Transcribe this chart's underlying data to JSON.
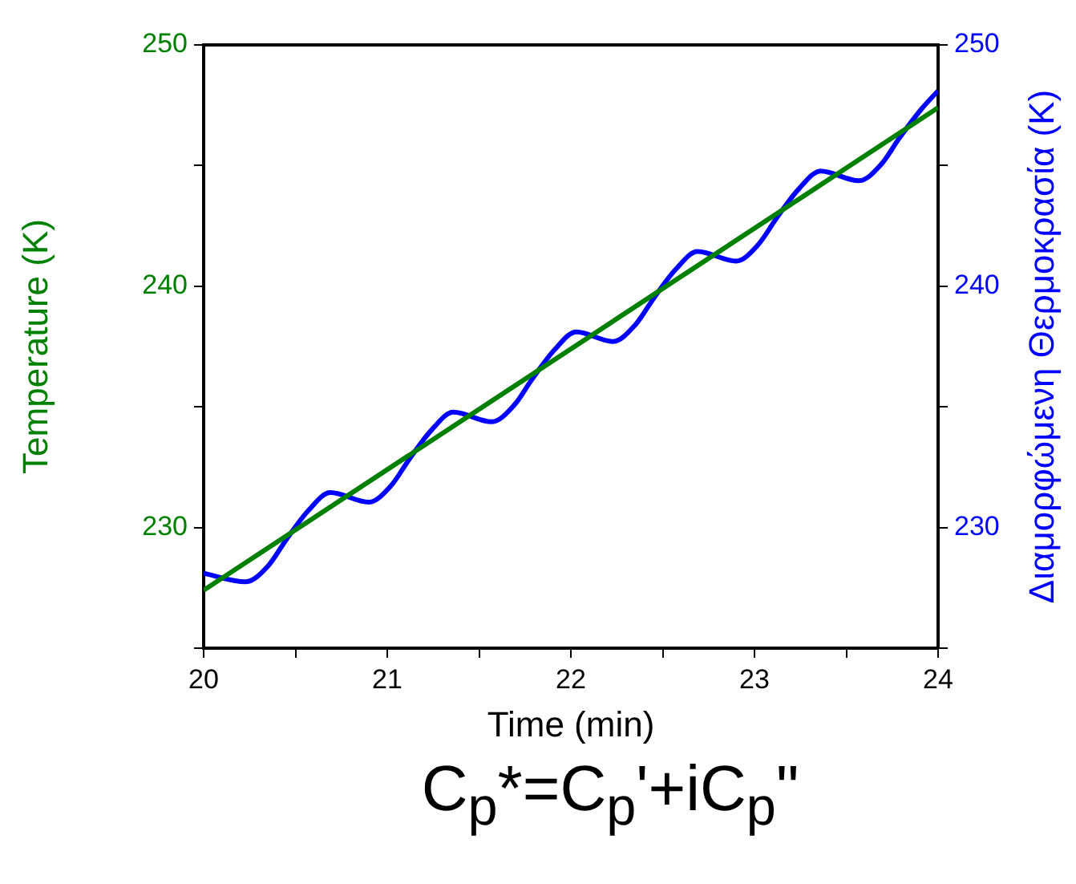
{
  "chart_data": {
    "type": "line",
    "xlabel": "Time (min)",
    "ylabel": "Temperature (K)",
    "y2label": "Διαμορφώμενη Θερμοκρασία (K)",
    "xlim": [
      20,
      24
    ],
    "xticks": [
      20,
      {
        "value": 20.5,
        "label": null
      },
      21,
      {
        "value": 21.5,
        "label": null
      },
      22,
      {
        "value": 22.5,
        "label": null
      },
      23,
      {
        "value": 23.5,
        "label": null
      },
      24
    ],
    "ylim": [
      225,
      250
    ],
    "yticks": [
      {
        "value": 225,
        "label": null
      },
      230,
      {
        "value": 235,
        "label": null
      },
      240,
      {
        "value": 245,
        "label": null
      },
      250
    ],
    "y2lim": [
      225,
      250
    ],
    "y2ticks": [
      {
        "value": 225,
        "label": null
      },
      230,
      {
        "value": 235,
        "label": null
      },
      240,
      {
        "value": 245,
        "label": null
      },
      250
    ],
    "grid": false,
    "legend": false,
    "marker": "none",
    "line_style": "solid",
    "annotations": [
      "C$_{p}$*=C$_{p}$'+iC$_{p}$\""
    ],
    "series": [
      {
        "color": "#008000",
        "x": [
          20,
          24
        ],
        "values": [
          227.4,
          247.4
        ]
      },
      {
        "color": "#0000ff",
        "axis": "y2",
        "x": [
          20,
          20.23,
          20.35,
          20.45,
          20.57,
          20.69,
          20.9,
          21.02,
          21.12,
          21.24,
          21.36,
          21.57,
          21.69,
          21.79,
          21.91,
          22.03,
          22.23,
          22.35,
          22.45,
          22.57,
          22.69,
          22.9,
          23.02,
          23.12,
          23.24,
          23.36,
          23.57,
          23.69,
          23.79,
          23.91,
          24
        ],
        "values": [
          228.1,
          227.75,
          228.4,
          229.5,
          230.7,
          231.45,
          231.05,
          231.73,
          232.83,
          234.03,
          234.78,
          234.38,
          235.06,
          236.16,
          237.36,
          238.11,
          237.71,
          238.39,
          239.49,
          240.69,
          241.44,
          241.04,
          241.72,
          242.82,
          244.02,
          244.77,
          244.37,
          245.05,
          246.15,
          247.35,
          248.1
        ]
      }
    ]
  }
}
